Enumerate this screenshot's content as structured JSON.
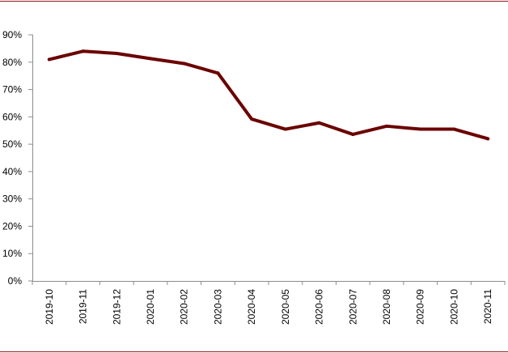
{
  "chart_data": {
    "type": "line",
    "title": "",
    "xlabel": "",
    "ylabel": "",
    "ylim": [
      0,
      90
    ],
    "y_tick_values": [
      0,
      10,
      20,
      30,
      40,
      50,
      60,
      70,
      80,
      90
    ],
    "y_tick_labels": [
      "0%",
      "10%",
      "20%",
      "30%",
      "40%",
      "50%",
      "60%",
      "70%",
      "80%",
      "90%"
    ],
    "grid": false,
    "legend": "none",
    "categories": [
      "2019-10",
      "2019-11",
      "2019-12",
      "2020-01",
      "2020-02",
      "2020-03",
      "2020-04",
      "2020-05",
      "2020-06",
      "2020-07",
      "2020-08",
      "2020-09",
      "2020-10",
      "2020-11"
    ],
    "series": [
      {
        "values": [
          81,
          84,
          83.2,
          81.3,
          79.5,
          76,
          59.2,
          55.5,
          57.8,
          53.6,
          56.6,
          55.5,
          55.5,
          52
        ],
        "color": "#6b0000"
      }
    ]
  },
  "colors": {
    "series_line": "#6b0000",
    "rule": "#8b1a1a",
    "axis": "#8c8c8c"
  }
}
